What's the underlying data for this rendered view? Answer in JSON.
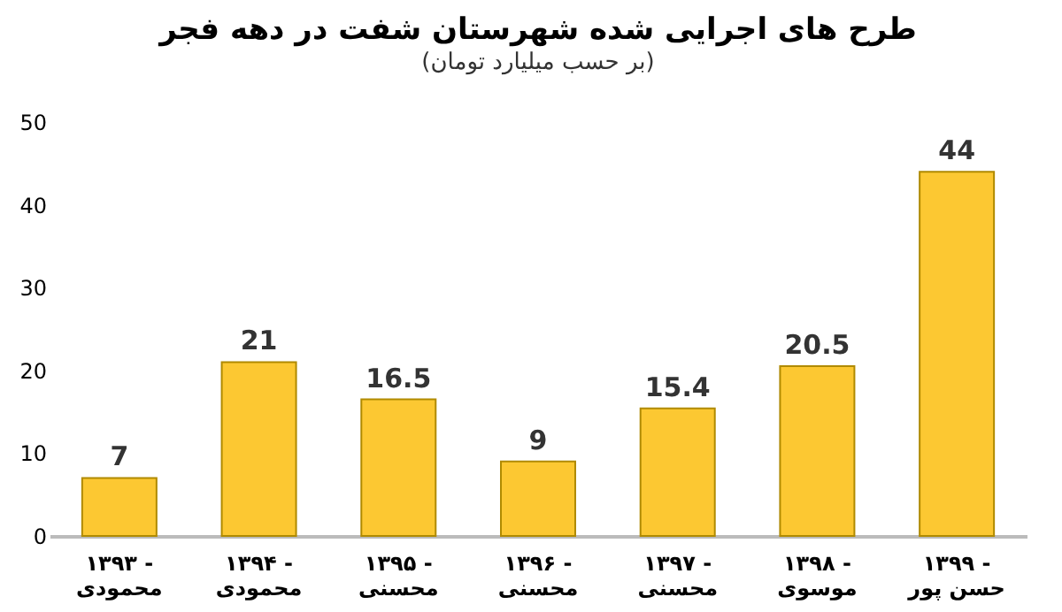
{
  "chart_data": {
    "type": "bar",
    "title": "طرح های اجرایی شده شهرستان شفت در دهه فجر",
    "subtitle": "(بر حسب میلیارد تومان)",
    "categories": [
      "۱۳۹۳ -\nمحمودی",
      "۱۳۹۴ -\nمحمودی",
      "۱۳۹۵ -\nمحسنی",
      "۱۳۹۶ -\nمحسنی",
      "۱۳۹۷ -\nمحسنی",
      "۱۳۹۸ -\nموسوی",
      "۱۳۹۹ -\nحسن پور"
    ],
    "values": [
      7,
      21,
      16.5,
      9,
      15.4,
      20.5,
      44
    ],
    "color": "#fcc832",
    "ylim": [
      0,
      50
    ],
    "yticks": [
      0,
      10,
      20,
      30,
      40,
      50
    ],
    "grid": false,
    "data_labels": true
  }
}
